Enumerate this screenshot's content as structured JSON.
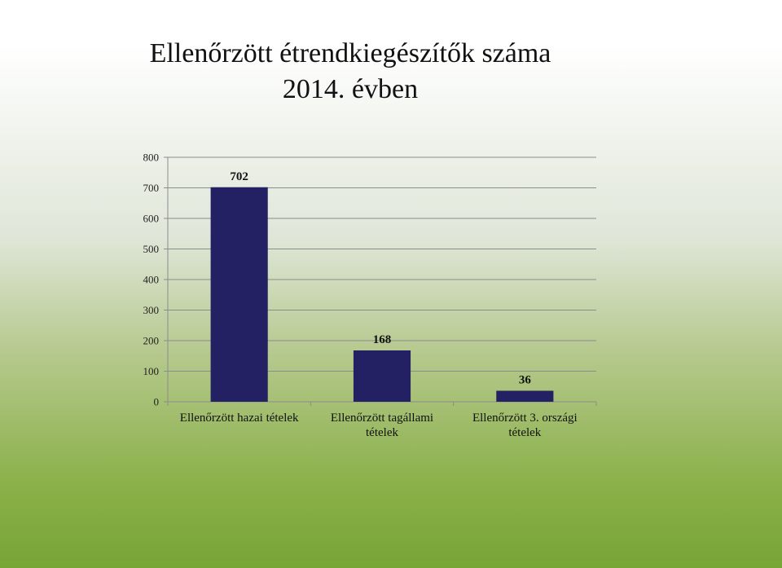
{
  "chart_data": {
    "type": "bar",
    "title": "Ellenőrzött étrendkiegészítők száma 2014. évben",
    "title_lines": [
      "Ellenőrzött étrendkiegészítők száma",
      "2014. évben"
    ],
    "categories": [
      [
        "Ellenőrzött hazai tételek"
      ],
      [
        "Ellenőrzött tagállami",
        "tételek"
      ],
      [
        "Ellenőrzött 3. országi",
        "tételek"
      ]
    ],
    "values": [
      702,
      168,
      36
    ],
    "data_labels": [
      "702",
      "168",
      "36"
    ],
    "yticks": [
      "0",
      "100",
      "200",
      "300",
      "400",
      "500",
      "600",
      "700",
      "800"
    ],
    "ylim": [
      0,
      800
    ],
    "grid": true,
    "legend": "none",
    "colors": {
      "bar": "#232164",
      "grid": "#8c8c8c",
      "axis": "#8c8c8c"
    }
  }
}
